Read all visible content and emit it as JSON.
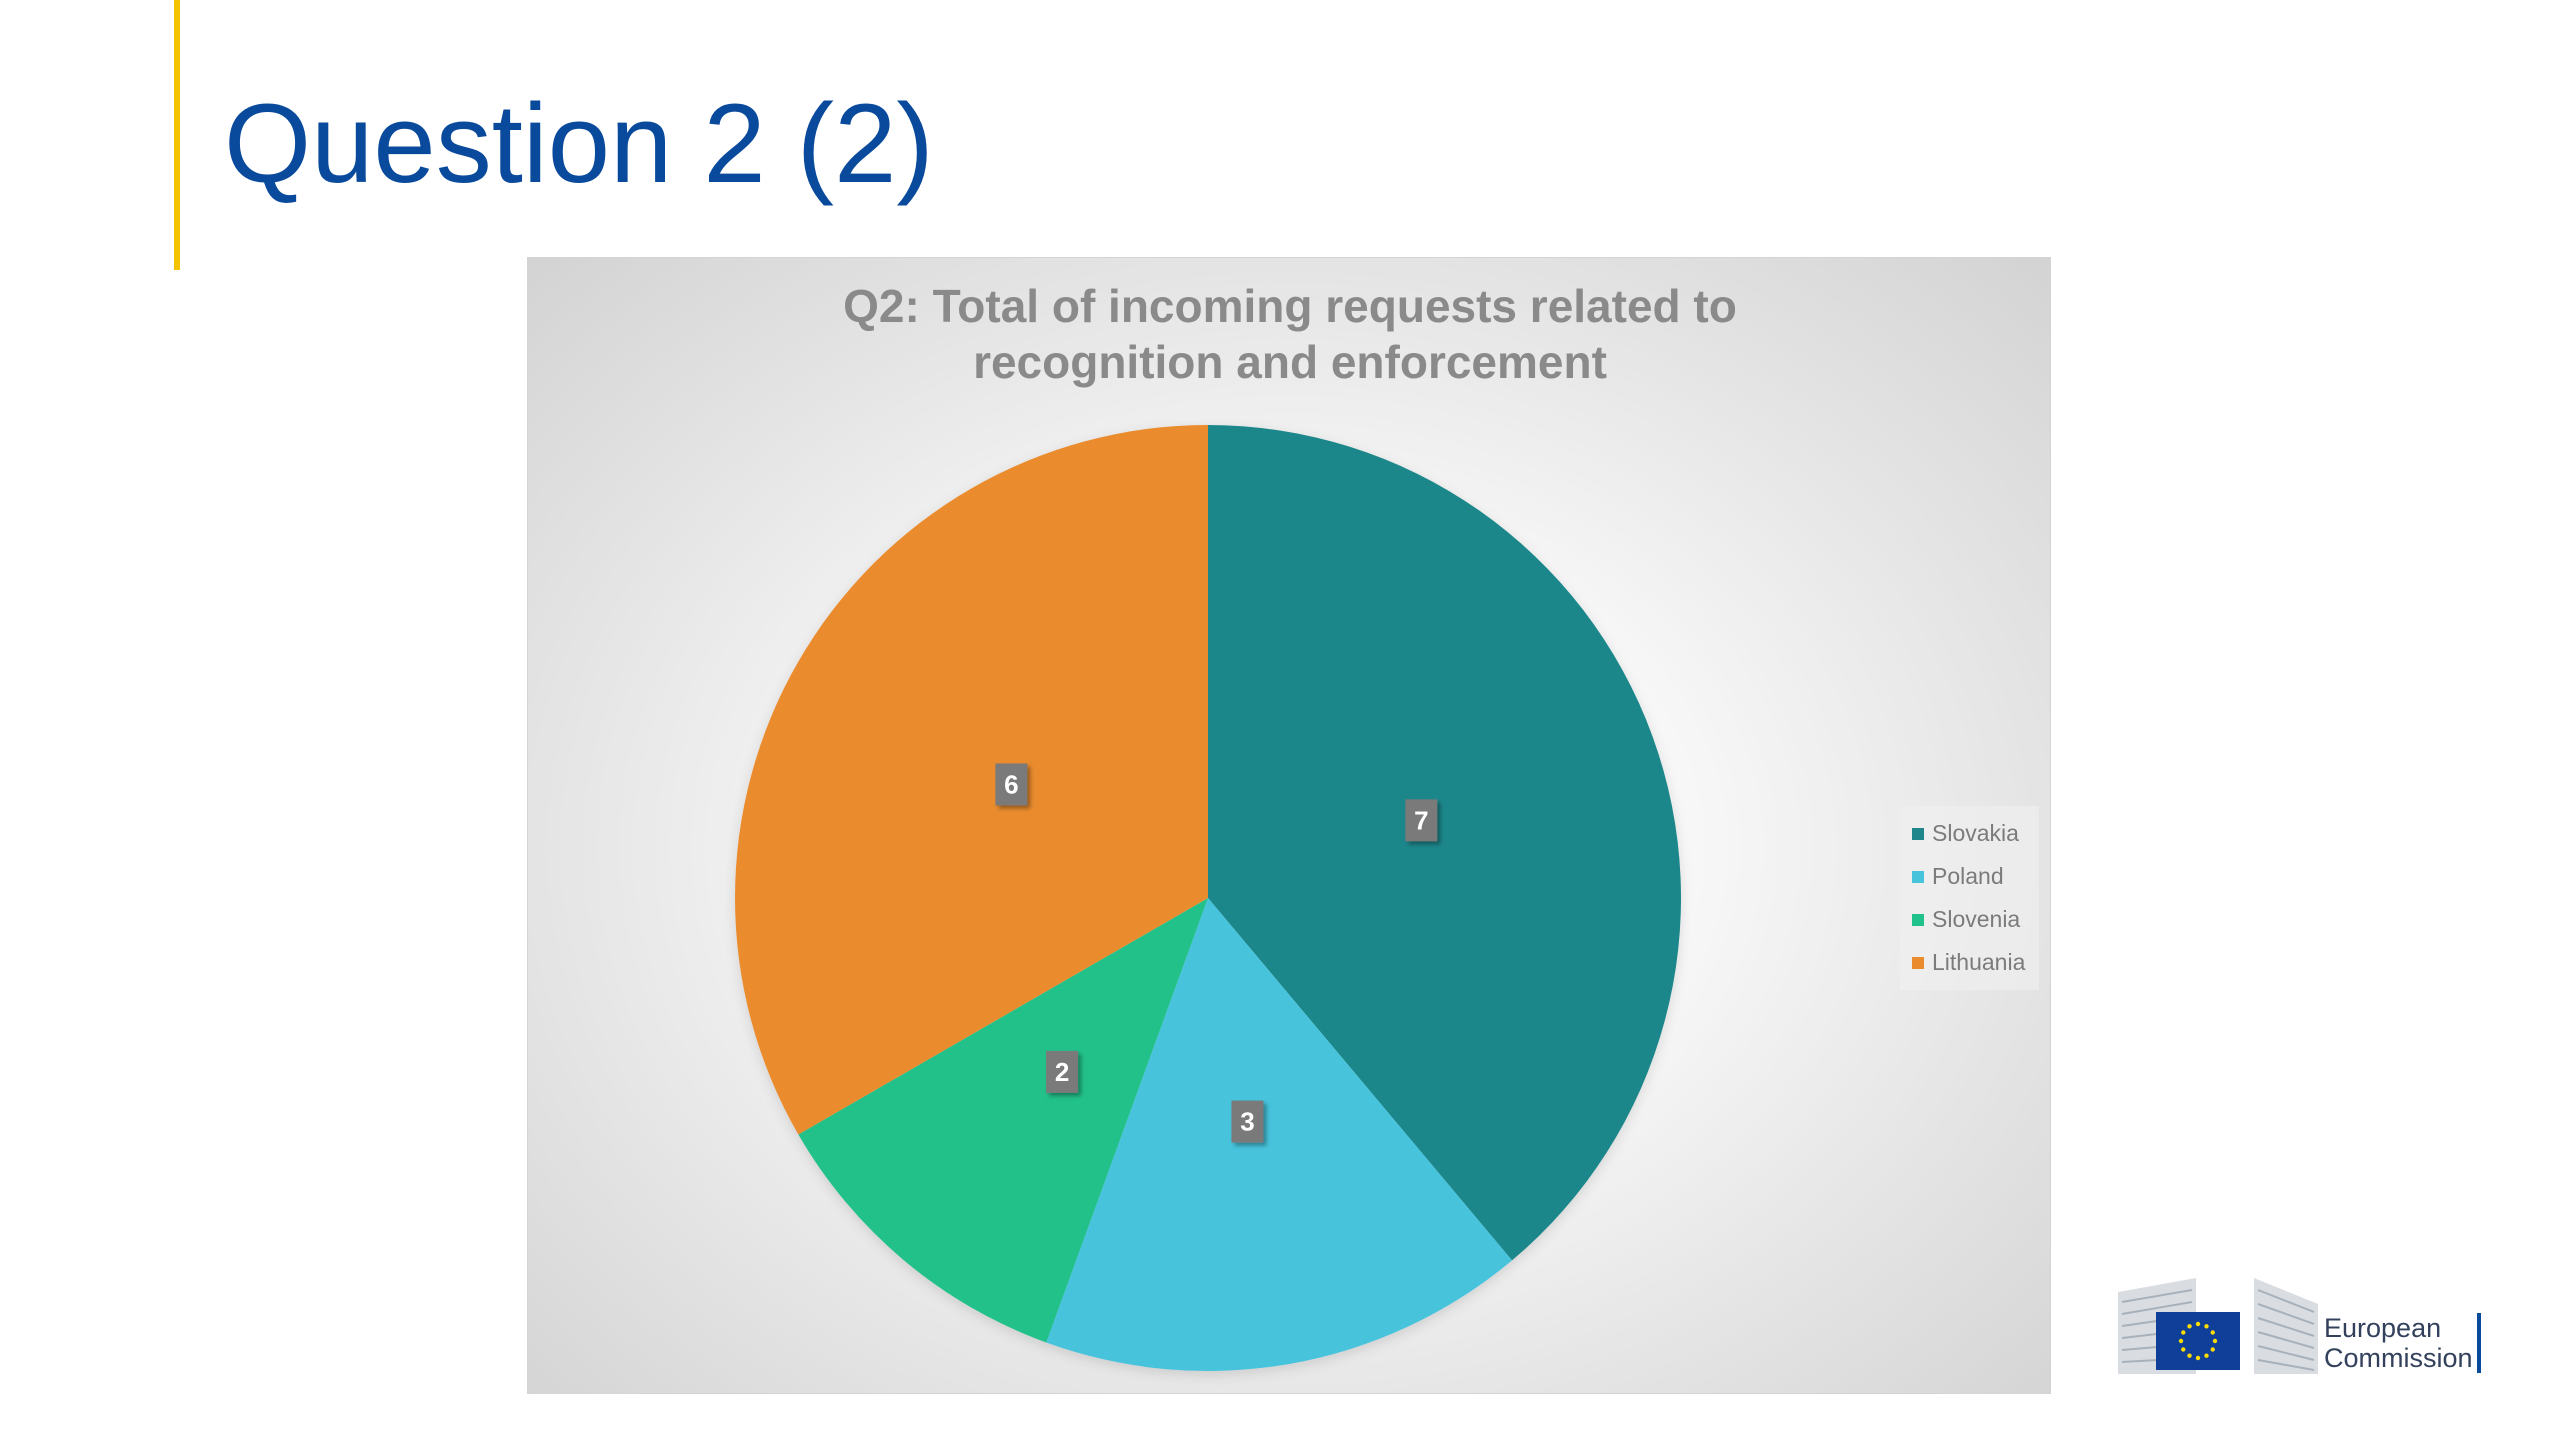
{
  "slide": {
    "title": "Question 2 (2)"
  },
  "chart_data": {
    "type": "pie",
    "title_lines": [
      "Q2: Total of incoming requests related to",
      "recognition and enforcement"
    ],
    "categories": [
      "Slovakia",
      "Poland",
      "Slovenia",
      "Lithuania"
    ],
    "values": [
      7,
      3,
      2,
      6
    ],
    "colors": [
      "#1f878b",
      "#47c3dc",
      "#20c18a",
      "#ea8c2e"
    ],
    "data_labels": [
      "7",
      "3",
      "2",
      "6"
    ],
    "start_angle_deg": 0,
    "direction": "clockwise",
    "legend_position": "right"
  },
  "logo": {
    "line1": "European",
    "line2": "Commission"
  },
  "colors": {
    "title": "#0a4a9c",
    "accent": "#f5c400",
    "chart_title": "#8a8a8a"
  }
}
